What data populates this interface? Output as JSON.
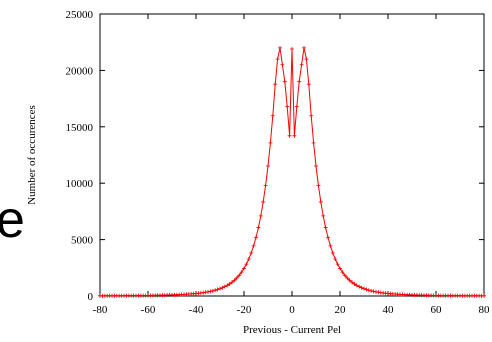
{
  "side_text": "e",
  "chart_data": {
    "type": "line",
    "title": "",
    "xlabel": "Previous - Current Pel",
    "ylabel": "Number of occurences",
    "xlim": [
      -80,
      80
    ],
    "ylim": [
      0,
      25000
    ],
    "xticks": [
      -80,
      -60,
      -40,
      -20,
      0,
      20,
      40,
      60,
      80
    ],
    "yticks": [
      0,
      5000,
      10000,
      15000,
      20000,
      25000
    ],
    "xtick_labels": [
      "-80",
      "-60",
      "-40",
      "-20",
      "0",
      "20",
      "40",
      "60",
      "80"
    ],
    "ytick_labels": [
      "0",
      "5000",
      "10000",
      "15000",
      "20000",
      "25000"
    ],
    "grid": false,
    "legend": "none",
    "series_color": "#ff0000",
    "series": [
      {
        "x": [
          -80,
          -79,
          -78,
          -77,
          -76,
          -75,
          -74,
          -73,
          -72,
          -71,
          -70,
          -69,
          -68,
          -67,
          -66,
          -65,
          -64,
          -63,
          -62,
          -61,
          -60,
          -59,
          -58,
          -57,
          -56,
          -55,
          -54,
          -53,
          -52,
          -51,
          -50,
          -49,
          -48,
          -47,
          -46,
          -45,
          -44,
          -43,
          -42,
          -41,
          -40,
          -39,
          -38,
          -37,
          -36,
          -35,
          -34,
          -33,
          -32,
          -31,
          -30,
          -29,
          -28,
          -27,
          -26,
          -25,
          -24,
          -23,
          -22,
          -21,
          -20,
          -19,
          -18,
          -17,
          -16,
          -15,
          -14,
          -13,
          -12,
          -11,
          -10,
          -9,
          -8,
          -7,
          -6,
          -5,
          -4,
          -3,
          -2,
          -1,
          0,
          1,
          2,
          3,
          4,
          5,
          6,
          7,
          8,
          9,
          10,
          11,
          12,
          13,
          14,
          15,
          16,
          17,
          18,
          19,
          20,
          21,
          22,
          23,
          24,
          25,
          26,
          27,
          28,
          29,
          30,
          31,
          32,
          33,
          34,
          35,
          36,
          37,
          38,
          39,
          40,
          41,
          42,
          43,
          44,
          45,
          46,
          47,
          48,
          49,
          50,
          51,
          52,
          53,
          54,
          55,
          56,
          57,
          58,
          59,
          60,
          61,
          62,
          63,
          64,
          65,
          66,
          67,
          68,
          69,
          70,
          71,
          72,
          73,
          74,
          75,
          76,
          77,
          78,
          79,
          80
        ],
        "values": [
          15,
          16,
          17,
          18,
          19,
          20,
          21,
          22,
          24,
          25,
          27,
          28,
          30,
          32,
          34,
          36,
          38,
          41,
          43,
          46,
          49,
          53,
          56,
          60,
          64,
          69,
          74,
          79,
          85,
          91,
          98,
          106,
          114,
          124,
          134,
          145,
          158,
          172,
          188,
          205,
          225,
          247,
          272,
          301,
          333,
          370,
          411,
          459,
          514,
          577,
          649,
          732,
          828,
          939,
          1068,
          1218,
          1393,
          1597,
          1836,
          2116,
          2444,
          2829,
          3282,
          3815,
          4444,
          5187,
          6066,
          7106,
          8338,
          9798,
          11527,
          13572,
          15978,
          18777,
          21000,
          22000,
          20500,
          19000,
          16800,
          14200,
          21900,
          14200,
          16800,
          19000,
          20500,
          22000,
          21000,
          18777,
          15978,
          13572,
          11527,
          9798,
          8338,
          7106,
          6066,
          5187,
          4444,
          3815,
          3282,
          2829,
          2444,
          2116,
          1836,
          1597,
          1393,
          1218,
          1068,
          939,
          828,
          732,
          649,
          577,
          514,
          459,
          411,
          370,
          333,
          301,
          272,
          247,
          225,
          205,
          188,
          172,
          158,
          145,
          134,
          124,
          114,
          106,
          98,
          91,
          85,
          79,
          74,
          69,
          64,
          60,
          56,
          53,
          49,
          46,
          43,
          41,
          38,
          36,
          34,
          32,
          30,
          28,
          27,
          25,
          24,
          22,
          21,
          20,
          19,
          18,
          17,
          16,
          15
        ]
      }
    ]
  }
}
